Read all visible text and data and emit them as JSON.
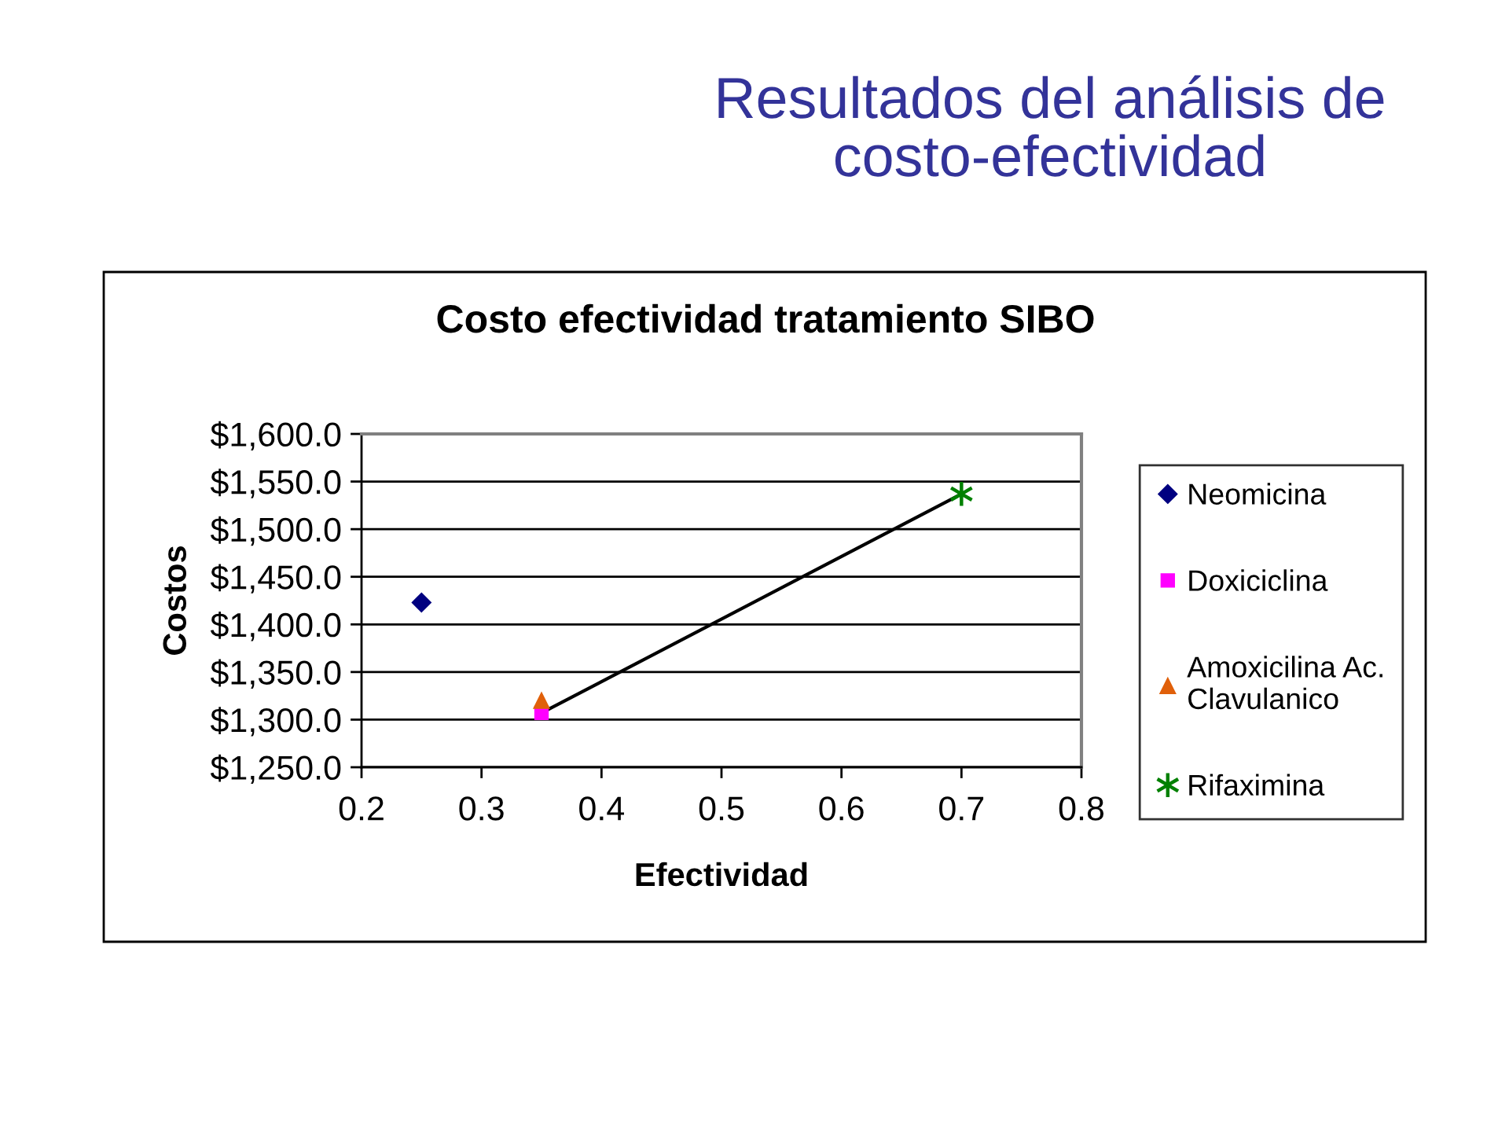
{
  "chart_data": {
    "type": "scatter",
    "title": "Resultados del análisis de\ncosto-efectividad",
    "subtitle": "Costo efectividad tratamiento SIBO",
    "xlabel": "Efectividad",
    "ylabel": "Costos",
    "series": [
      {
        "name": "Neomicina",
        "color": "#000080",
        "marker": "diamond",
        "x": [
          0.25
        ],
        "values": [
          1423
        ]
      },
      {
        "name": "Doxiciclina",
        "color": "#ff00ff",
        "marker": "square",
        "x": [
          0.35
        ],
        "values": [
          1307
        ]
      },
      {
        "name": "Amoxicilina Ac.\nClavulanico",
        "color": "#e0600a",
        "marker": "triangle",
        "x": [
          0.35
        ],
        "values": [
          1320
        ]
      },
      {
        "name": "Rifaximina",
        "color": "#008000",
        "marker": "cross",
        "x": [
          0.7
        ],
        "values": [
          1537
        ]
      },
      {
        "type": "line",
        "color": "#000000",
        "marker": "none",
        "line_style": "solid",
        "x": [
          0.35,
          0.7
        ],
        "values": [
          1307,
          1537
        ]
      }
    ],
    "xlim": [
      0.2,
      0.8
    ],
    "xticks": [
      0.2,
      0.3,
      0.4,
      0.5,
      0.6,
      0.7,
      0.8
    ],
    "ylim": [
      1250,
      1600
    ],
    "yticks": [
      {
        "value": 1250,
        "label": "$1,250.0"
      },
      {
        "value": 1300,
        "label": "$1,300.0"
      },
      {
        "value": 1350,
        "label": "$1,350.0"
      },
      {
        "value": 1400,
        "label": "$1,400.0"
      },
      {
        "value": 1450,
        "label": "$1,450.0"
      },
      {
        "value": 1500,
        "label": "$1,500.0"
      },
      {
        "value": 1550,
        "label": "$1,550.0"
      },
      {
        "value": 1600,
        "label": "$1,600.0"
      }
    ],
    "grid": "y",
    "legend": "right"
  }
}
